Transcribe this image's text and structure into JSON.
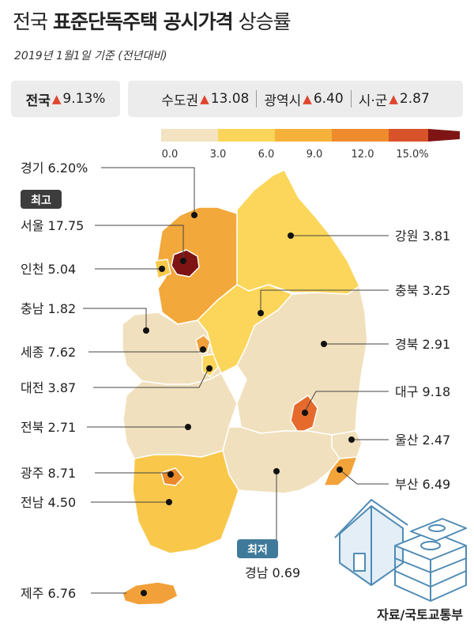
{
  "title": {
    "part1": "전국 ",
    "part2": "표준단독주택 공시가격",
    "part3": " 상승률"
  },
  "subtitle": "2019년 1월1일 기준 (전년대비)",
  "summary": {
    "national": {
      "label": "전국",
      "arrow": "▲",
      "value": "9.13%"
    },
    "groups": [
      {
        "label": "수도권",
        "arrow": "▲",
        "value": "13.08"
      },
      {
        "label": "광역시",
        "arrow": "▲",
        "value": "6.40"
      },
      {
        "label": "시·군",
        "arrow": "▲",
        "value": "2.87"
      }
    ]
  },
  "legend": {
    "ticks": [
      "0.0",
      "3.0",
      "6.0",
      "9.0",
      "12.0",
      "15.0%"
    ],
    "colors": [
      "#f3e3c0",
      "#fbd55a",
      "#f6b13b",
      "#ee8b2c",
      "#d9532a",
      "#7e1414"
    ]
  },
  "regions": [
    {
      "id": "gyeonggi",
      "name": "경기",
      "value": "6.20%",
      "color": "#f2a83a"
    },
    {
      "id": "seoul",
      "name": "서울",
      "value": "17.75",
      "color": "#7e1414",
      "badge": "최고"
    },
    {
      "id": "incheon",
      "name": "인천",
      "value": "5.04",
      "color": "#f6c94a"
    },
    {
      "id": "gangwon",
      "name": "강원",
      "value": "3.81",
      "color": "#fcd65a"
    },
    {
      "id": "chungnam",
      "name": "충남",
      "value": "1.82",
      "color": "#f1e0bd"
    },
    {
      "id": "chungbuk",
      "name": "충북",
      "value": "3.25",
      "color": "#fcd65a"
    },
    {
      "id": "sejong",
      "name": "세종",
      "value": "7.62",
      "color": "#f0a03a"
    },
    {
      "id": "daejeon",
      "name": "대전",
      "value": "3.87",
      "color": "#fcd65a"
    },
    {
      "id": "gyeongbuk",
      "name": "경북",
      "value": "2.91",
      "color": "#f1e0bd"
    },
    {
      "id": "daegu",
      "name": "대구",
      "value": "9.18",
      "color": "#e56a2b"
    },
    {
      "id": "jeonbuk",
      "name": "전북",
      "value": "2.71",
      "color": "#f1e0bd"
    },
    {
      "id": "ulsan",
      "name": "울산",
      "value": "2.47",
      "color": "#f1e0bd"
    },
    {
      "id": "gwangju",
      "name": "광주",
      "value": "8.71",
      "color": "#ea8a2b"
    },
    {
      "id": "busan",
      "name": "부산",
      "value": "6.49",
      "color": "#f2a33a"
    },
    {
      "id": "jeonnam",
      "name": "전남",
      "value": "4.50",
      "color": "#f9c84a"
    },
    {
      "id": "gyeongnam",
      "name": "경남",
      "value": "0.69",
      "color": "#f1e0bd",
      "badge": "최저"
    },
    {
      "id": "jeju",
      "name": "제주",
      "value": "6.76",
      "color": "#f2a03a"
    }
  ],
  "source": "자료/국토교통부"
}
